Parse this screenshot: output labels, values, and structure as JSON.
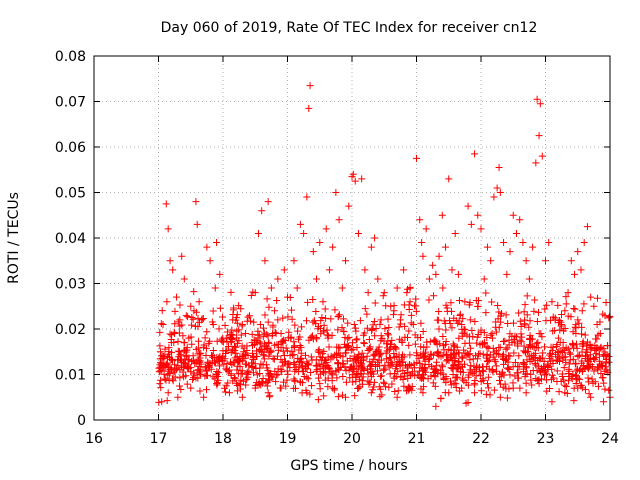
{
  "chart_data": {
    "type": "scatter",
    "title": "Day 060 of 2019, Rate Of TEC Index for receiver cn12",
    "xlabel": "GPS time / hours",
    "ylabel": "ROTI / TECUs",
    "xlim": [
      16,
      24
    ],
    "ylim": [
      0,
      0.08
    ],
    "xticks": [
      16,
      17,
      18,
      19,
      20,
      21,
      22,
      23,
      24
    ],
    "xtick_labels": [
      "16",
      "17",
      "18",
      "19",
      "20",
      "21",
      "22",
      "23",
      "24"
    ],
    "yticks": [
      0,
      0.01,
      0.02,
      0.03,
      0.04,
      0.05,
      0.06,
      0.07,
      0.08
    ],
    "ytick_labels": [
      "0",
      "0.01",
      "0.02",
      "0.03",
      "0.04",
      "0.05",
      "0.06",
      "0.07",
      "0.08"
    ],
    "grid": true,
    "marker": "+",
    "color": "#ff0000",
    "series": [
      {
        "name": "ROTI",
        "points": [
          [
            17.02,
            0.008
          ],
          [
            17.03,
            0.015
          ],
          [
            17.05,
            0.011
          ],
          [
            17.07,
            0.021
          ],
          [
            17.08,
            0.012
          ],
          [
            17.1,
            0.009
          ],
          [
            17.12,
            0.0475
          ],
          [
            17.13,
            0.026
          ],
          [
            17.15,
            0.042
          ],
          [
            17.18,
            0.035
          ],
          [
            17.2,
            0.017
          ],
          [
            17.22,
            0.033
          ],
          [
            17.25,
            0.019
          ],
          [
            17.28,
            0.027
          ],
          [
            17.3,
            0.012
          ],
          [
            17.33,
            0.022
          ],
          [
            17.36,
            0.036
          ],
          [
            17.4,
            0.031
          ],
          [
            17.43,
            0.014
          ],
          [
            17.47,
            0.018
          ],
          [
            17.5,
            0.025
          ],
          [
            17.55,
            0.024
          ],
          [
            17.58,
            0.048
          ],
          [
            17.6,
            0.043
          ],
          [
            17.63,
            0.026
          ],
          [
            17.67,
            0.022
          ],
          [
            17.7,
            0.016
          ],
          [
            17.75,
            0.038
          ],
          [
            17.8,
            0.035
          ],
          [
            17.85,
            0.021
          ],
          [
            17.88,
            0.029
          ],
          [
            17.9,
            0.039
          ],
          [
            17.95,
            0.032
          ],
          [
            18.0,
            0.014
          ],
          [
            18.05,
            0.018
          ],
          [
            18.1,
            0.011
          ],
          [
            18.15,
            0.022
          ],
          [
            18.2,
            0.016
          ],
          [
            18.25,
            0.013
          ],
          [
            18.3,
            0.021
          ],
          [
            18.35,
            0.019
          ],
          [
            18.4,
            0.012
          ],
          [
            18.45,
            0.017
          ],
          [
            18.5,
            0.028
          ],
          [
            18.55,
            0.041
          ],
          [
            18.6,
            0.046
          ],
          [
            18.65,
            0.035
          ],
          [
            18.7,
            0.048
          ],
          [
            18.75,
            0.029
          ],
          [
            18.8,
            0.024
          ],
          [
            18.85,
            0.031
          ],
          [
            18.9,
            0.019
          ],
          [
            18.95,
            0.033
          ],
          [
            19.0,
            0.027
          ],
          [
            19.05,
            0.018
          ],
          [
            19.1,
            0.035
          ],
          [
            19.15,
            0.029
          ],
          [
            19.2,
            0.043
          ],
          [
            19.25,
            0.041
          ],
          [
            19.3,
            0.049
          ],
          [
            19.33,
            0.0685
          ],
          [
            19.35,
            0.0735
          ],
          [
            19.4,
            0.037
          ],
          [
            19.45,
            0.031
          ],
          [
            19.5,
            0.039
          ],
          [
            19.55,
            0.026
          ],
          [
            19.6,
            0.042
          ],
          [
            19.65,
            0.033
          ],
          [
            19.7,
            0.038
          ],
          [
            19.75,
            0.05
          ],
          [
            19.8,
            0.044
          ],
          [
            19.85,
            0.029
          ],
          [
            19.9,
            0.035
          ],
          [
            19.95,
            0.047
          ],
          [
            20.0,
            0.0535
          ],
          [
            20.02,
            0.054
          ],
          [
            20.05,
            0.0525
          ],
          [
            20.1,
            0.041
          ],
          [
            20.15,
            0.053
          ],
          [
            20.2,
            0.033
          ],
          [
            20.25,
            0.028
          ],
          [
            20.3,
            0.038
          ],
          [
            20.35,
            0.04
          ],
          [
            20.4,
            0.031
          ],
          [
            20.45,
            0.022
          ],
          [
            20.5,
            0.028
          ],
          [
            20.55,
            0.019
          ],
          [
            20.6,
            0.025
          ],
          [
            20.65,
            0.024
          ],
          [
            20.7,
            0.029
          ],
          [
            20.75,
            0.022
          ],
          [
            20.8,
            0.033
          ],
          [
            20.85,
            0.028
          ],
          [
            20.9,
            0.026
          ],
          [
            20.95,
            0.021
          ],
          [
            21.0,
            0.0575
          ],
          [
            21.05,
            0.044
          ],
          [
            21.08,
            0.039
          ],
          [
            21.1,
            0.036
          ],
          [
            21.15,
            0.042
          ],
          [
            21.2,
            0.031
          ],
          [
            21.25,
            0.034
          ],
          [
            21.3,
            0.032
          ],
          [
            21.35,
            0.036
          ],
          [
            21.4,
            0.045
          ],
          [
            21.45,
            0.038
          ],
          [
            21.5,
            0.053
          ],
          [
            21.55,
            0.033
          ],
          [
            21.6,
            0.041
          ],
          [
            21.65,
            0.032
          ],
          [
            21.7,
            0.021
          ],
          [
            21.75,
            0.026
          ],
          [
            21.8,
            0.047
          ],
          [
            21.85,
            0.043
          ],
          [
            21.9,
            0.0585
          ],
          [
            21.95,
            0.045
          ],
          [
            22.0,
            0.042
          ],
          [
            22.05,
            0.031
          ],
          [
            22.1,
            0.038
          ],
          [
            22.15,
            0.035
          ],
          [
            22.2,
            0.049
          ],
          [
            22.25,
            0.051
          ],
          [
            22.28,
            0.0555
          ],
          [
            22.3,
            0.05
          ],
          [
            22.35,
            0.039
          ],
          [
            22.4,
            0.032
          ],
          [
            22.45,
            0.037
          ],
          [
            22.5,
            0.045
          ],
          [
            22.55,
            0.041
          ],
          [
            22.6,
            0.044
          ],
          [
            22.65,
            0.039
          ],
          [
            22.7,
            0.035
          ],
          [
            22.75,
            0.031
          ],
          [
            22.8,
            0.038
          ],
          [
            22.85,
            0.0565
          ],
          [
            22.87,
            0.0705
          ],
          [
            22.9,
            0.0625
          ],
          [
            22.92,
            0.0695
          ],
          [
            22.95,
            0.058
          ],
          [
            23.0,
            0.035
          ],
          [
            23.05,
            0.039
          ],
          [
            23.1,
            0.026
          ],
          [
            23.15,
            0.022
          ],
          [
            23.2,
            0.018
          ],
          [
            23.25,
            0.021
          ],
          [
            23.3,
            0.024
          ],
          [
            23.35,
            0.028
          ],
          [
            23.4,
            0.035
          ],
          [
            23.45,
            0.032
          ],
          [
            23.5,
            0.037
          ],
          [
            23.55,
            0.033
          ],
          [
            23.6,
            0.039
          ],
          [
            23.65,
            0.0425
          ],
          [
            23.7,
            0.027
          ],
          [
            23.75,
            0.025
          ],
          [
            23.8,
            0.021
          ],
          [
            23.85,
            0.019
          ],
          [
            23.9,
            0.014
          ],
          [
            23.95,
            0.011
          ],
          [
            24.0,
            0.005
          ],
          [
            17.05,
            0.004
          ],
          [
            17.15,
            0.006
          ],
          [
            17.3,
            0.005
          ],
          [
            17.5,
            0.007
          ],
          [
            17.7,
            0.005
          ],
          [
            17.9,
            0.008
          ],
          [
            18.1,
            0.006
          ],
          [
            18.3,
            0.005
          ],
          [
            18.5,
            0.007
          ],
          [
            18.7,
            0.006
          ],
          [
            18.9,
            0.007
          ],
          [
            19.1,
            0.009
          ],
          [
            19.3,
            0.006
          ],
          [
            19.5,
            0.008
          ],
          [
            19.7,
            0.007
          ],
          [
            19.9,
            0.005
          ],
          [
            20.1,
            0.007
          ],
          [
            20.3,
            0.006
          ],
          [
            20.5,
            0.008
          ],
          [
            20.7,
            0.005
          ],
          [
            20.9,
            0.007
          ],
          [
            21.1,
            0.006
          ],
          [
            21.3,
            0.003
          ],
          [
            21.5,
            0.006
          ],
          [
            21.7,
            0.007
          ],
          [
            21.9,
            0.006
          ],
          [
            22.1,
            0.008
          ],
          [
            22.3,
            0.005
          ],
          [
            22.5,
            0.007
          ],
          [
            22.7,
            0.006
          ],
          [
            22.9,
            0.008
          ],
          [
            23.1,
            0.004
          ],
          [
            23.3,
            0.006
          ],
          [
            23.5,
            0.007
          ],
          [
            23.7,
            0.005
          ],
          [
            23.9,
            0.004
          ]
        ],
        "dense_band": {
          "x_start": 17.0,
          "x_end": 24.0,
          "y_center": 0.012,
          "y_spread": 0.007,
          "count": 1600
        }
      }
    ]
  }
}
